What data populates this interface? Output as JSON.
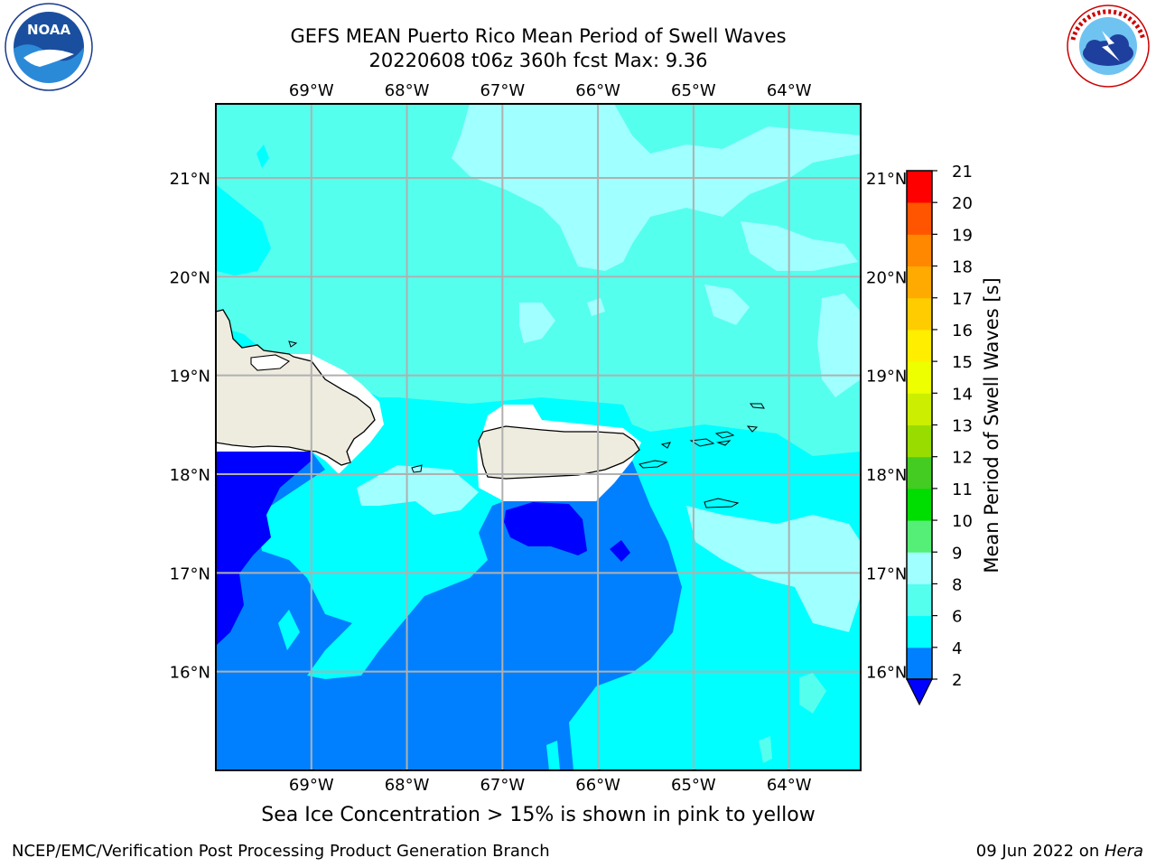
{
  "title": {
    "line1": "GEFS MEAN Puerto Rico Mean Period of Swell Waves",
    "line2": "20220608 t06z 360h fcst   Max: 9.36"
  },
  "map": {
    "lon_labels": [
      "69°W",
      "68°W",
      "67°W",
      "66°W",
      "65°W",
      "64°W"
    ],
    "lat_labels": [
      "21°N",
      "20°N",
      "19°N",
      "18°N",
      "17°N",
      "16°N"
    ],
    "lon_extent": [
      -70.0,
      -63.25
    ],
    "lat_extent": [
      15.0,
      21.75
    ],
    "gridline_color": "#b0b0b0",
    "land_color": "#eeecdf",
    "coastline_color": "#000000"
  },
  "colorbar": {
    "label": "Mean Period of Swell Waves [s]",
    "ticks": [
      "2",
      "4",
      "6",
      "8",
      "9",
      "10",
      "11",
      "12",
      "13",
      "14",
      "15",
      "16",
      "17",
      "18",
      "19",
      "20",
      "21"
    ],
    "colors": [
      "#0080ff",
      "#00ffff",
      "#55ffee",
      "#a0ffff",
      "#55ee77",
      "#00dd00",
      "#44cc22",
      "#99dd00",
      "#ccee00",
      "#eeff00",
      "#ffee00",
      "#ffcc00",
      "#ffaa00",
      "#ff8800",
      "#ff5500",
      "#ff2200",
      "#ff0000"
    ],
    "under_color": "#0000ff"
  },
  "ice_note": "Sea Ice Concentration > 15% is shown in pink to yellow",
  "footer": {
    "left": "NCEP/EMC/Verification Post Processing Product Generation Branch",
    "right_prefix": "09 Jun 2022 on ",
    "right_italic": "Hera"
  },
  "logos": {
    "noaa": {
      "text": "NOAA",
      "ring_text": "NATIONAL OCEANIC AND ATMOSPHERIC ADMINISTRATION · U.S. DEPARTMENT OF COMMERCE"
    },
    "nws": {
      "ring_text": "NATIONAL WEATHER SERVICE"
    }
  },
  "levels": {
    "c2": "#0000ff",
    "c4": "#0080ff",
    "c6": "#00ffff",
    "c8": "#55ffee",
    "c9": "#a0ffff",
    "c10": "#55ee77"
  }
}
